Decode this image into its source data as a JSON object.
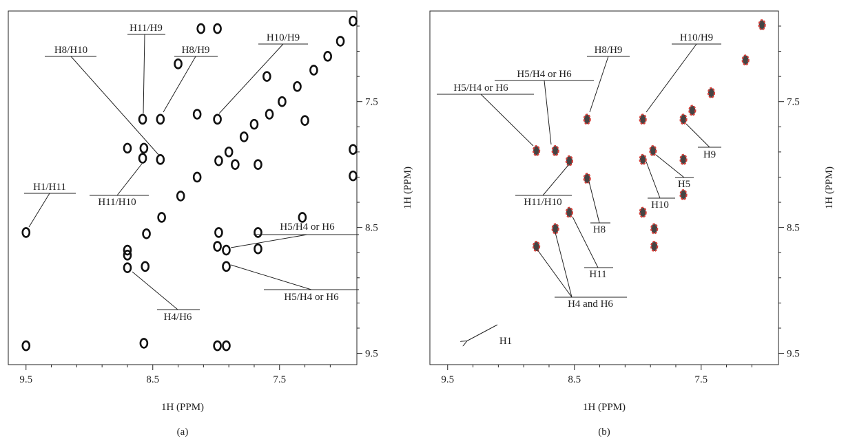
{
  "chart_data": [
    {
      "type": "scatter",
      "caption": "(a)",
      "xlabel": "1H (PPM)",
      "ylabel": "1H (PPM)",
      "xlim": [
        9.64,
        6.89
      ],
      "ylim": [
        6.78,
        9.59
      ],
      "xticks": [
        9.5,
        8.5,
        7.5
      ],
      "yticks": [
        7.5,
        8.5,
        9.5
      ],
      "xminorticks": [
        9.3,
        9.1,
        8.9,
        8.7,
        8.3,
        8.1,
        7.9,
        7.7,
        7.3,
        7.1
      ],
      "yminorticks": [
        6.9,
        7.1,
        7.3,
        7.7,
        7.9,
        8.1,
        8.3,
        8.7,
        8.9,
        9.1,
        9.3
      ],
      "series": [
        {
          "color": "#111111",
          "x": [
            8.7,
            8.55,
            8.43,
            8.28,
            8.15,
            7.98,
            7.9,
            7.78,
            7.7,
            7.58,
            7.48,
            7.36,
            7.23,
            7.12,
            7.02,
            6.92,
            9.5,
            9.5,
            8.7,
            8.57,
            8.58,
            8.44,
            8.58,
            8.44,
            8.7,
            8.7,
            8.56,
            8.57,
            8.12,
            7.99,
            7.99,
            7.98,
            7.99,
            7.92,
            7.92,
            7.92,
            7.99,
            7.67,
            7.67,
            7.67,
            7.85,
            7.32,
            6.92,
            6.92,
            8.15,
            8.3,
            7.6,
            7.3
          ],
          "y": [
            8.72,
            8.55,
            8.42,
            8.25,
            8.1,
            7.97,
            7.9,
            7.78,
            7.68,
            7.6,
            7.5,
            7.38,
            7.25,
            7.14,
            7.02,
            6.86,
            8.54,
            9.44,
            7.87,
            7.87,
            7.95,
            7.96,
            7.64,
            7.64,
            8.68,
            8.82,
            8.81,
            9.42,
            6.92,
            6.92,
            7.64,
            8.54,
            8.65,
            8.68,
            8.81,
            9.44,
            9.44,
            8.0,
            8.54,
            8.67,
            8.0,
            8.42,
            7.88,
            8.09,
            7.6,
            7.2,
            7.3,
            7.65
          ]
        }
      ],
      "annotations": [
        "H11/H9",
        "H8/H10",
        "H8/H9",
        "H10/H9",
        "H1/H11",
        "H11/H10",
        "H5/H4 or H6",
        "H5/H4 or H6",
        "H4/H6"
      ]
    },
    {
      "type": "scatter",
      "caption": "(b)",
      "xlabel": "1H (PPM)",
      "ylabel": "1H (PPM)",
      "xlim": [
        9.64,
        6.89
      ],
      "ylim": [
        6.78,
        9.59
      ],
      "xticks": [
        9.5,
        8.5,
        7.5
      ],
      "yticks": [
        7.5,
        8.5,
        9.5
      ],
      "xminorticks": [
        9.3,
        9.1,
        8.9,
        8.7,
        8.3,
        8.1,
        7.9,
        7.7,
        7.3,
        7.1
      ],
      "yminorticks": [
        6.9,
        7.1,
        7.3,
        7.7,
        7.9,
        8.1,
        8.3,
        8.7,
        8.9,
        9.1,
        9.3
      ],
      "series": [
        {
          "color": "#d9403a",
          "x": [
            8.8,
            8.65,
            8.54,
            8.4,
            8.4,
            8.54,
            8.65,
            8.8,
            7.96,
            7.88,
            7.96,
            7.96,
            7.87,
            7.87,
            7.64,
            7.64,
            7.64,
            7.57,
            7.42,
            7.15,
            7.02
          ],
          "y": [
            7.89,
            7.89,
            7.97,
            7.64,
            8.11,
            8.38,
            8.51,
            8.65,
            7.64,
            7.89,
            7.96,
            8.38,
            8.51,
            8.65,
            7.64,
            7.96,
            8.24,
            7.57,
            7.43,
            7.17,
            6.89
          ]
        }
      ],
      "annotations": [
        "H8/H9",
        "H10/H9",
        "H5/H4 or H6",
        "H5/H4 or H6",
        "H11/H10",
        "H9",
        "H5",
        "H10",
        "H8",
        "H11",
        "H4 and H6",
        "H1"
      ]
    }
  ]
}
